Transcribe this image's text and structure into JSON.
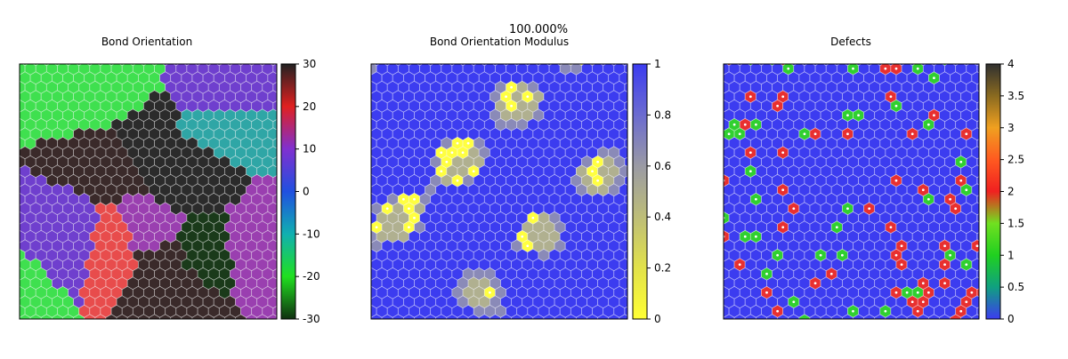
{
  "header": {
    "progress_label": "100.000%"
  },
  "chart_data": [
    {
      "type": "heatmap",
      "title": "Bond Orientation",
      "colorbar": {
        "range": [
          -30,
          30
        ],
        "ticks": [
          "30",
          "20",
          "10",
          "0",
          "-10",
          "-20",
          "-30"
        ],
        "tick_values": [
          30,
          20,
          10,
          0,
          -10,
          -20,
          -30
        ],
        "colors": [
          "#222222",
          "#e02020",
          "#8030d0",
          "#2050e0",
          "#10b0b0",
          "#20e020",
          "#103010"
        ]
      },
      "cell_colors": [
        "#1a3a1a",
        "#1f7a2a",
        "#2ad13a",
        "#3fe04f",
        "#2fa6a6",
        "#2f5fd6",
        "#6f3fce",
        "#9a3fb0",
        "#d63434",
        "#e84c4c",
        "#3a2a2a",
        "#2b2b2b"
      ]
    },
    {
      "type": "heatmap",
      "title": "Bond Orientation Modulus",
      "colorbar": {
        "range": [
          0,
          1
        ],
        "ticks": [
          "1",
          "0.8",
          "0.6",
          "0.4",
          "0.2",
          "0"
        ],
        "tick_values": [
          1,
          0.8,
          0.6,
          0.4,
          0.2,
          0
        ],
        "colors": [
          "#3c3cf0",
          "#6b6bd0",
          "#9a9aa4",
          "#bdbd78",
          "#e2e24a",
          "#ffff33"
        ]
      },
      "cell_colors": [
        "#3c3cf0",
        "#3c3cf0",
        "#3c3cf0",
        "#4a4ae6",
        "#8a8ab8",
        "#b0b090",
        "#ffff40"
      ]
    },
    {
      "type": "heatmap",
      "title": "Defects",
      "colorbar": {
        "range": [
          0,
          4
        ],
        "ticks": [
          "4",
          "3.5",
          "3",
          "2.5",
          "2",
          "1.5",
          "1",
          "0.5",
          "0"
        ],
        "tick_values": [
          4,
          3.5,
          3,
          2.5,
          2,
          1.5,
          1,
          0.5,
          0
        ],
        "colors": [
          "#303030",
          "#8a6a20",
          "#f0a020",
          "#ff5a20",
          "#f02020",
          "#70e020",
          "#20d020",
          "#10a080",
          "#3c3cf0"
        ]
      },
      "cell_colors": [
        "#3c3cf0",
        "#3c3cf0",
        "#3c3cf0",
        "#3c3cf0",
        "#3c3cf0",
        "#3c3cf0",
        "#3c3cf0",
        "#3c3cf0",
        "#e83030",
        "#30d030"
      ]
    }
  ]
}
